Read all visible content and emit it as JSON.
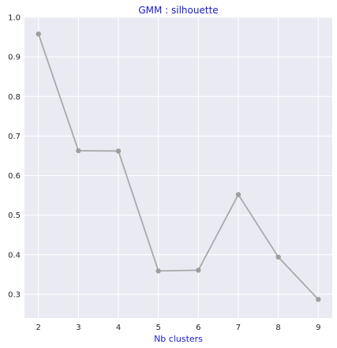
{
  "chart_data": {
    "type": "line",
    "title": "GMM : silhouette",
    "xlabel": "Nb clusters",
    "ylabel": "",
    "x": [
      2,
      3,
      4,
      5,
      6,
      7,
      8,
      9
    ],
    "series": [
      {
        "values": [
          0.958,
          0.663,
          0.662,
          0.359,
          0.361,
          0.552,
          0.394,
          0.287
        ]
      }
    ],
    "xlim": [
      1.65,
      9.35
    ],
    "ylim": [
      0.24,
      1.0
    ],
    "xticks": [
      "2",
      "3",
      "4",
      "5",
      "6",
      "7",
      "8",
      "9"
    ],
    "yticks": [
      "0.3",
      "0.4",
      "0.5",
      "0.6",
      "0.7",
      "0.8",
      "0.9",
      "1.0"
    ],
    "grid": true,
    "legend": "none"
  },
  "colors": {
    "plot_background": "#eaeaf2",
    "grid": "#ffffff",
    "line": "#a9a9a9",
    "marker": "#9e9e9e",
    "title": "#1a1acc",
    "xlabel": "#1a1acc"
  }
}
